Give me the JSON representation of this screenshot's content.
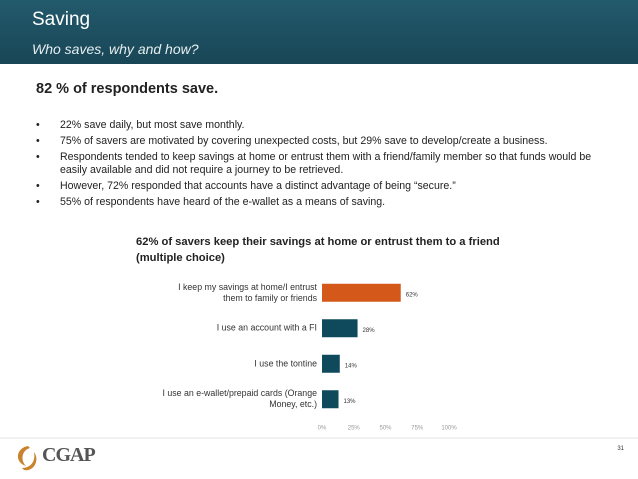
{
  "header": {
    "title": "Saving",
    "subtitle": "Who saves, why and how?"
  },
  "headline": "82 % of respondents save.",
  "bullets": [
    "22% save daily, but most save monthly.",
    "75% of savers are motivated by covering unexpected costs, but 29% save to develop/create a business.",
    "Respondents tended to keep savings at home or entrust them with a friend/family member so that funds would be easily available and did not require a journey to be retrieved.",
    "However, 72% responded that accounts have a distinct advantage of being “secure.”",
    "55% of respondents have heard of the e-wallet as a means of saving."
  ],
  "chart_data": {
    "type": "hbar",
    "title": "62% of savers keep their savings at home or entrust them to a friend (multiple choice)",
    "categories": [
      "I keep my savings at home/I entrust them to family or friends",
      "I use an account with a FI",
      "I use the tontine",
      "I use an e-wallet/prepaid cards (Orange Money, etc.)"
    ],
    "values": [
      62,
      28,
      14,
      13
    ],
    "value_labels": [
      "62%",
      "28%",
      "14%",
      "13%"
    ],
    "colors": [
      "#d4581a",
      "#0f4a5c",
      "#0f4a5c",
      "#0f4a5c"
    ],
    "xlim": [
      0,
      100
    ],
    "xticks": [
      {
        "value": 0,
        "label": "0%"
      },
      {
        "value": 25,
        "label": "25%"
      },
      {
        "value": 50,
        "label": "50%"
      },
      {
        "value": 75,
        "label": "75%"
      },
      {
        "value": 100,
        "label": "100%"
      }
    ],
    "grid": false
  },
  "footer": {
    "logo": "CGAP",
    "page": "31"
  }
}
